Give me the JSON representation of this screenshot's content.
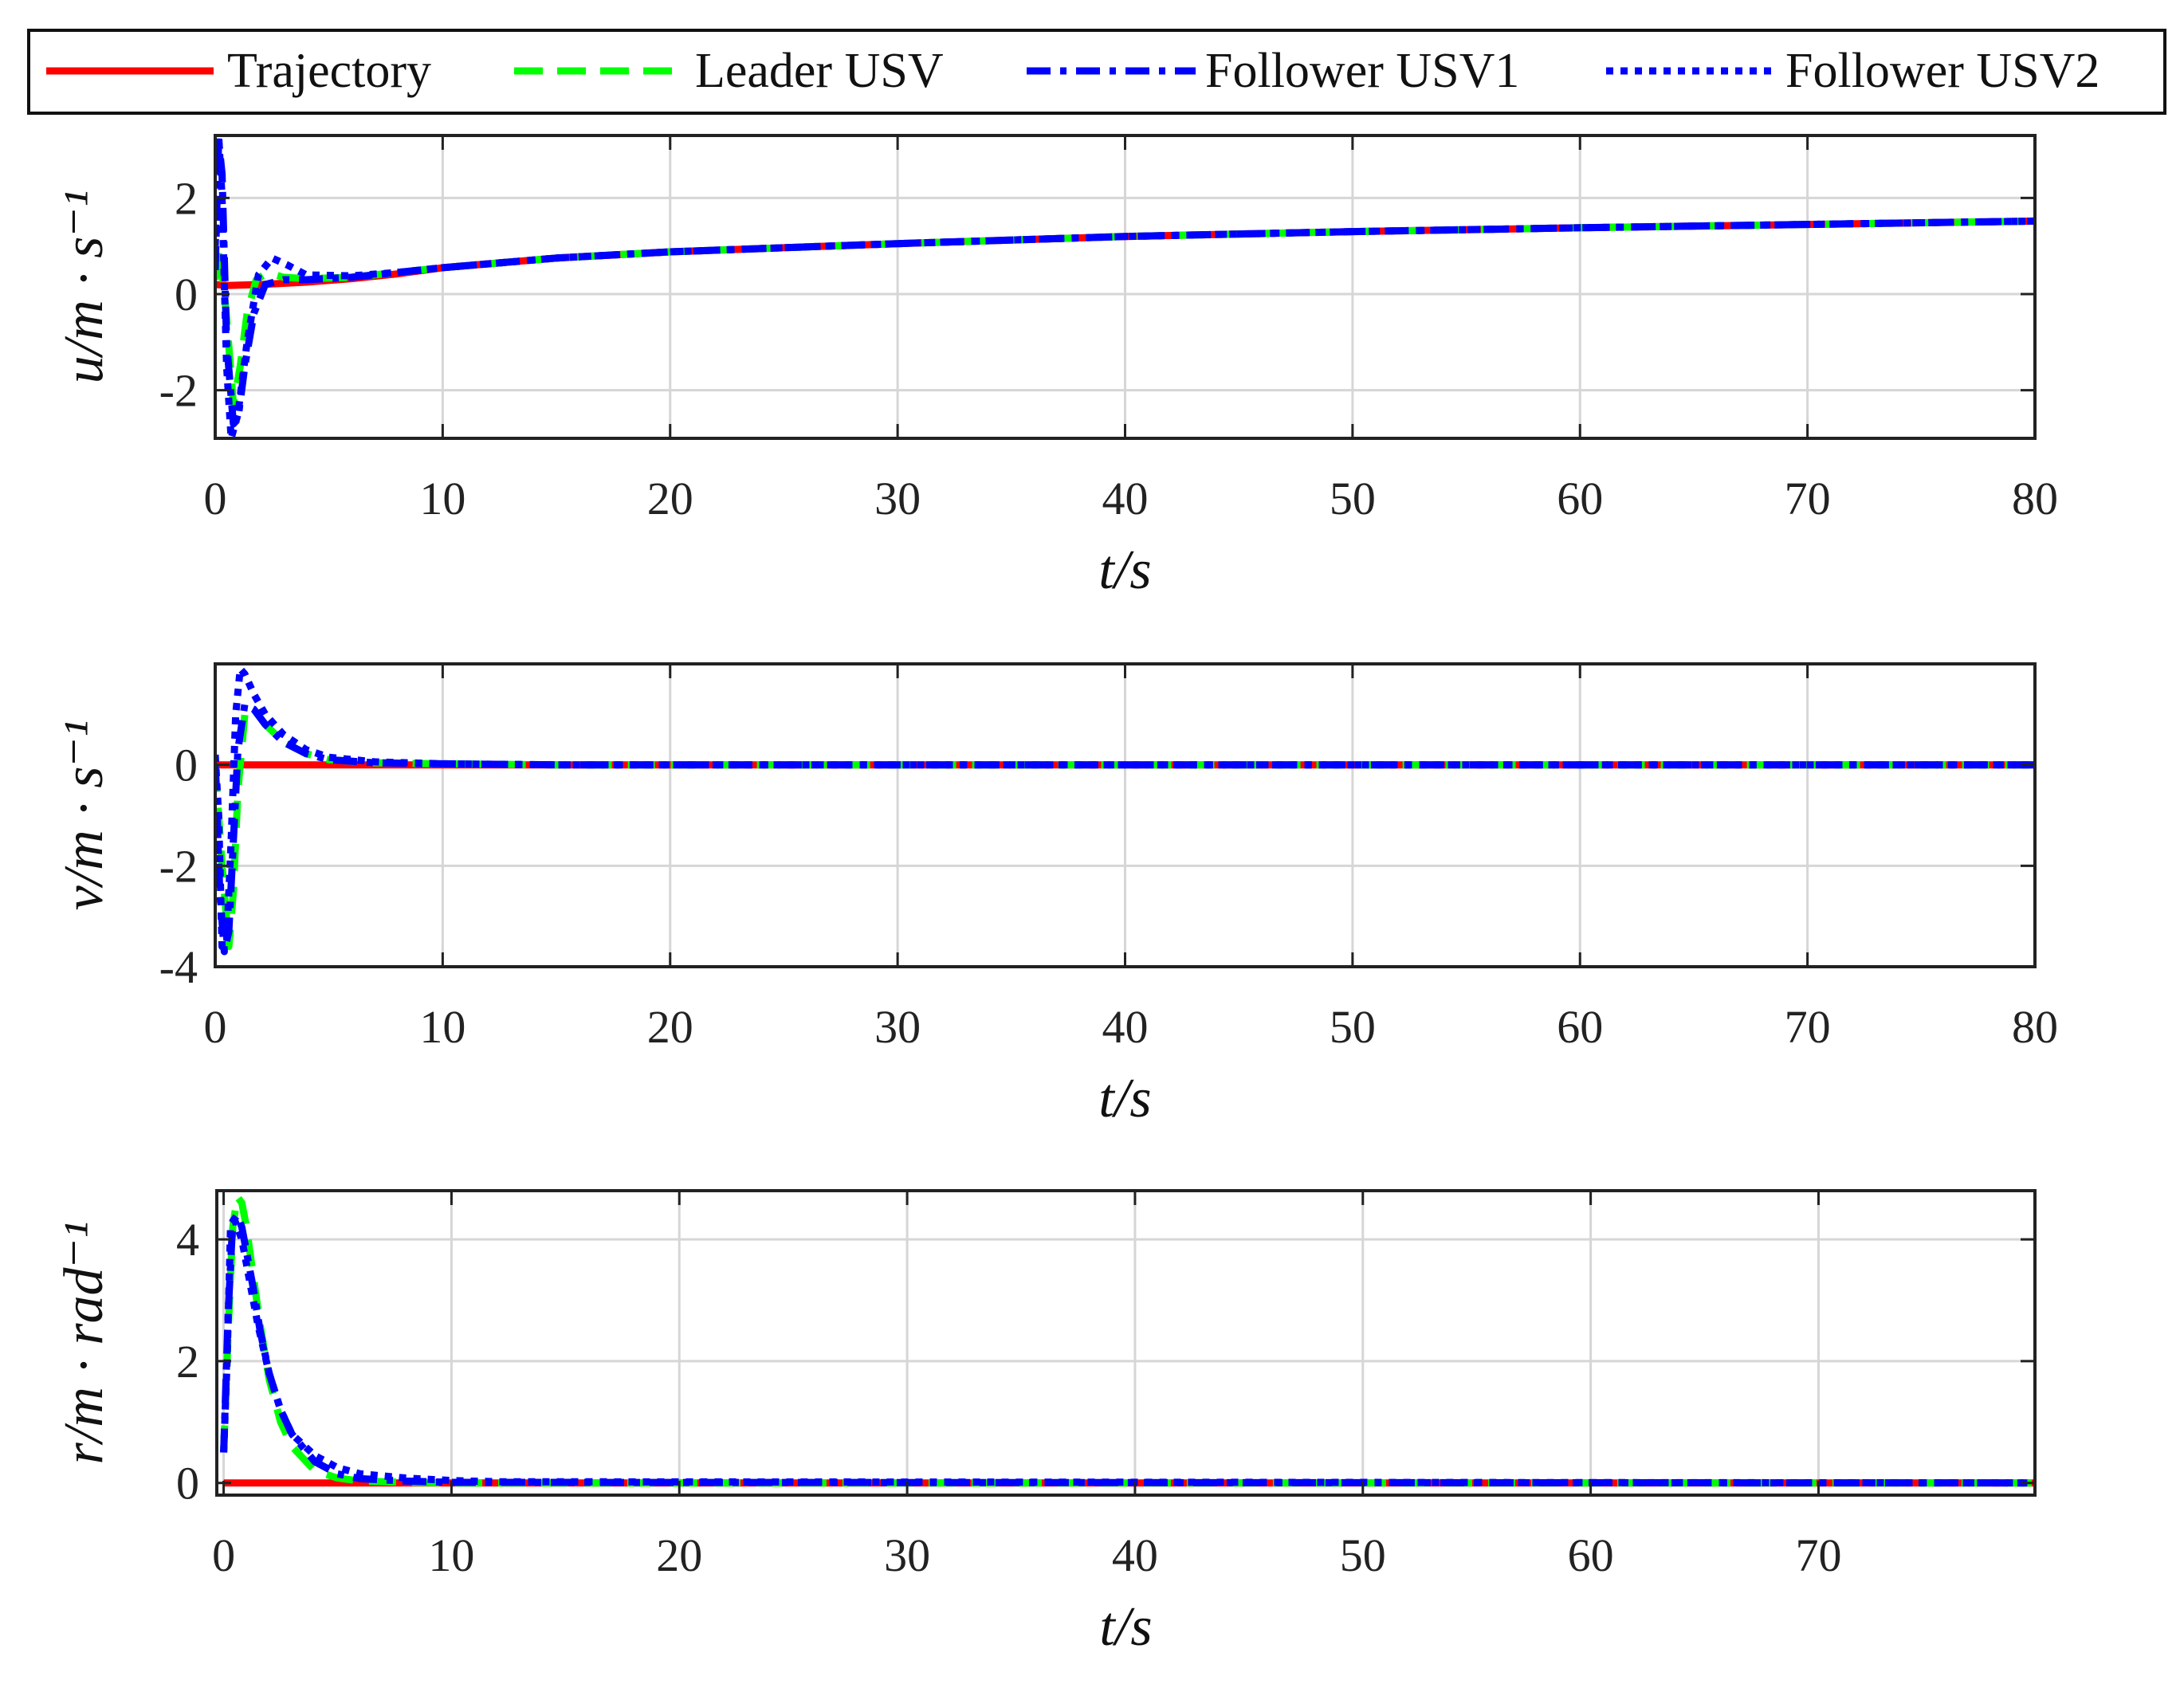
{
  "legend": {
    "placement": "top",
    "entries": [
      {
        "label": "Trajectory",
        "color": "#ff0000",
        "dash": "solid"
      },
      {
        "label": "Leader USV",
        "color": "#00ff00",
        "dash": "dashed"
      },
      {
        "label": "Follower USV1",
        "color": "#0000ff",
        "dash": "dashdot"
      },
      {
        "label": "Follower USV2",
        "color": "#0000ff",
        "dash": "dotted"
      }
    ]
  },
  "chart_data": [
    {
      "type": "line",
      "xlabel": "t/s",
      "ylabel": "u/m · s⁻¹",
      "xlim": [
        0,
        80
      ],
      "ylim": [
        -3,
        3.3
      ],
      "xticks": [
        0,
        10,
        20,
        30,
        40,
        50,
        60,
        70,
        80
      ],
      "yticks": [
        -2,
        0,
        2
      ],
      "ytick_labels": [
        "-2",
        "0",
        "2"
      ],
      "grid": true,
      "series": [
        {
          "name": "Trajectory",
          "x": [
            0,
            0.5,
            2,
            4,
            6,
            8,
            10,
            15,
            20,
            30,
            40,
            50,
            60,
            70,
            80
          ],
          "y": [
            0.2,
            0.18,
            0.2,
            0.25,
            0.32,
            0.42,
            0.55,
            0.75,
            0.88,
            1.05,
            1.2,
            1.3,
            1.38,
            1.45,
            1.52
          ]
        },
        {
          "name": "Leader USV",
          "x": [
            0,
            0.2,
            0.5,
            0.8,
            1.1,
            1.4,
            1.8,
            2.3,
            3,
            4,
            6,
            8,
            10,
            15,
            20,
            30,
            40,
            50,
            60,
            70,
            80
          ],
          "y": [
            0.3,
            1.0,
            -0.5,
            -2.3,
            -1.5,
            -0.4,
            0.3,
            0.45,
            0.35,
            0.32,
            0.35,
            0.45,
            0.55,
            0.75,
            0.88,
            1.05,
            1.2,
            1.3,
            1.38,
            1.45,
            1.52
          ]
        },
        {
          "name": "Follower USV1",
          "x": [
            0,
            0.15,
            0.3,
            0.5,
            0.8,
            1.0,
            1.3,
            1.7,
            2.2,
            3,
            4,
            6,
            8,
            10,
            15,
            20,
            30,
            40,
            50,
            60,
            70,
            80
          ],
          "y": [
            0.5,
            3.2,
            2.5,
            -1.0,
            -2.7,
            -2.6,
            -1.5,
            -0.4,
            0.2,
            0.3,
            0.3,
            0.35,
            0.45,
            0.55,
            0.75,
            0.88,
            1.05,
            1.2,
            1.3,
            1.38,
            1.45,
            1.52
          ]
        },
        {
          "name": "Follower USV2",
          "x": [
            0,
            0.15,
            0.3,
            0.5,
            0.7,
            1.0,
            1.4,
            1.9,
            2.5,
            3.2,
            4,
            6,
            8,
            10,
            15,
            20,
            30,
            40,
            50,
            60,
            70,
            80
          ],
          "y": [
            1.0,
            3.3,
            2.0,
            -1.5,
            -3.0,
            -2.5,
            -1.0,
            0.4,
            0.75,
            0.6,
            0.4,
            0.38,
            0.45,
            0.55,
            0.75,
            0.88,
            1.05,
            1.2,
            1.3,
            1.38,
            1.45,
            1.52
          ]
        }
      ]
    },
    {
      "type": "line",
      "xlabel": "t/s",
      "ylabel": "v/m · s⁻¹",
      "xlim": [
        0,
        80
      ],
      "ylim": [
        -4,
        2
      ],
      "xticks": [
        0,
        10,
        20,
        30,
        40,
        50,
        60,
        70,
        80
      ],
      "yticks": [
        -4,
        -2,
        0
      ],
      "ytick_labels": [
        "-4",
        "-2",
        "0"
      ],
      "grid": true,
      "series": [
        {
          "name": "Trajectory",
          "x": [
            0,
            80
          ],
          "y": [
            0,
            0
          ]
        },
        {
          "name": "Leader USV",
          "x": [
            0,
            0.3,
            0.6,
            0.8,
            1.0,
            1.3,
            1.7,
            2.2,
            3,
            4,
            5,
            7,
            10,
            15,
            80
          ],
          "y": [
            0,
            -2.0,
            -3.6,
            -2.5,
            -0.5,
            1.0,
            1.1,
            0.8,
            0.45,
            0.22,
            0.1,
            0.04,
            0.02,
            0.0,
            0.0
          ]
        },
        {
          "name": "Follower USV1",
          "x": [
            0,
            0.2,
            0.4,
            0.6,
            0.8,
            1.0,
            1.3,
            1.7,
            2.2,
            3,
            4,
            5,
            7,
            10,
            15,
            80
          ],
          "y": [
            0,
            -2.5,
            -3.7,
            -3.3,
            -1.5,
            0.3,
            1.2,
            1.1,
            0.8,
            0.45,
            0.22,
            0.1,
            0.04,
            0.02,
            0.0,
            0.0
          ]
        },
        {
          "name": "Follower USV2",
          "x": [
            0,
            0.15,
            0.3,
            0.5,
            0.7,
            0.9,
            1.1,
            1.3,
            1.7,
            2.2,
            3,
            4,
            5,
            7,
            10,
            15,
            80
          ],
          "y": [
            0.2,
            -1.0,
            -3.6,
            -3.5,
            -1.5,
            1.0,
            1.9,
            1.8,
            1.4,
            1.0,
            0.6,
            0.3,
            0.15,
            0.06,
            0.02,
            0.0,
            0.0
          ]
        }
      ]
    },
    {
      "type": "line",
      "xlabel": "t/s",
      "ylabel": "r/m · rad⁻¹",
      "xlim": [
        -0.3,
        79.5
      ],
      "ylim": [
        -0.2,
        4.8
      ],
      "xticks": [
        0,
        10,
        20,
        30,
        40,
        50,
        60,
        70
      ],
      "yticks": [
        0,
        2,
        4
      ],
      "ytick_labels": [
        "0",
        "2",
        "4"
      ],
      "grid": true,
      "series": [
        {
          "name": "Trajectory",
          "x": [
            0,
            79.5
          ],
          "y": [
            0,
            0
          ]
        },
        {
          "name": "Leader USV",
          "x": [
            0,
            0.2,
            0.4,
            0.6,
            0.8,
            1.0,
            1.3,
            1.6,
            2.0,
            2.5,
            3,
            4,
            5,
            6,
            8,
            10,
            79.5
          ],
          "y": [
            0.5,
            2.5,
            4.2,
            4.7,
            4.6,
            4.2,
            3.4,
            2.6,
            1.7,
            1.0,
            0.6,
            0.2,
            0.08,
            0.03,
            0.01,
            0.0,
            0.0
          ]
        },
        {
          "name": "Follower USV1",
          "x": [
            0,
            0.2,
            0.4,
            0.6,
            0.8,
            1.0,
            1.3,
            1.6,
            2.0,
            2.5,
            3,
            4,
            5,
            6,
            8,
            10,
            79.5
          ],
          "y": [
            0.5,
            2.8,
            4.3,
            4.4,
            4.2,
            3.8,
            3.2,
            2.5,
            1.8,
            1.2,
            0.8,
            0.35,
            0.15,
            0.07,
            0.03,
            0.01,
            0.0
          ]
        },
        {
          "name": "Follower USV2",
          "x": [
            0,
            0.15,
            0.3,
            0.5,
            0.8,
            1.1,
            1.5,
            2.0,
            2.5,
            3,
            4,
            5,
            6,
            8,
            10,
            12,
            79.5
          ],
          "y": [
            0.5,
            2.0,
            4.2,
            4.3,
            4.0,
            3.4,
            2.6,
            1.8,
            1.2,
            0.8,
            0.45,
            0.25,
            0.15,
            0.08,
            0.04,
            0.02,
            0.0
          ]
        }
      ]
    }
  ]
}
